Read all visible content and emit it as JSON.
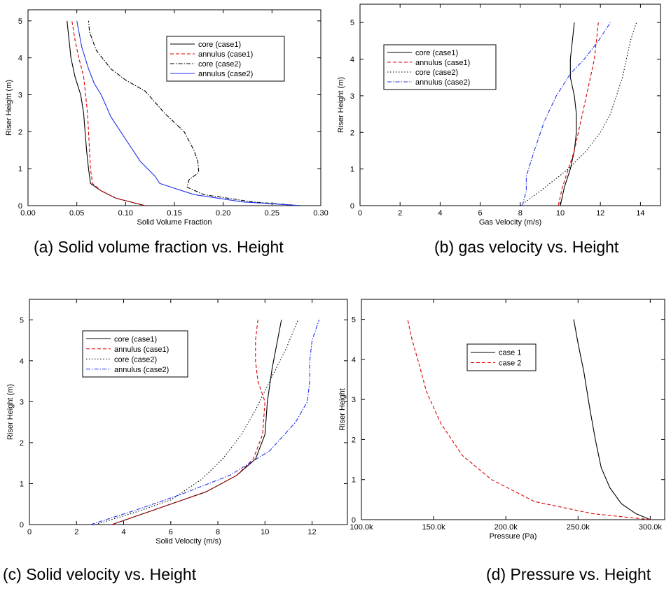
{
  "captions": {
    "a": "(a) Solid volume fraction vs. Height",
    "b": "(b) gas velocity vs. Height",
    "c": "(c) Solid velocity vs. Height",
    "d": "(d) Pressure vs. Height"
  },
  "chart_data": [
    {
      "id": "a",
      "type": "line",
      "xlabel": "Solid Volume Fraction",
      "ylabel": "Riser Height (m)",
      "xlim": [
        0,
        0.3
      ],
      "ylim": [
        0,
        5.3
      ],
      "xticks": [
        0,
        0.05,
        0.1,
        0.15,
        0.2,
        0.25,
        0.3
      ],
      "xtick_labels": [
        "0.00",
        "0.05",
        "0.10",
        "0.15",
        "0.20",
        "0.25",
        "0.30"
      ],
      "yticks": [
        0,
        1,
        2,
        3,
        4,
        5
      ],
      "ytick_labels": [
        "0",
        "1",
        "2",
        "3",
        "4",
        "5"
      ],
      "legend_position": "top-right",
      "series": [
        {
          "name": "core (case1)",
          "color": "#000000",
          "dash": "solid",
          "points": [
            [
              0.12,
              0
            ],
            [
              0.09,
              0.2
            ],
            [
              0.075,
              0.4
            ],
            [
              0.064,
              0.6
            ],
            [
              0.062,
              1.0
            ],
            [
              0.06,
              1.5
            ],
            [
              0.057,
              2.5
            ],
            [
              0.054,
              3.0
            ],
            [
              0.048,
              3.5
            ],
            [
              0.044,
              4.0
            ],
            [
              0.042,
              4.5
            ],
            [
              0.04,
              5.0
            ]
          ]
        },
        {
          "name": "annulus (case1)",
          "color": "#dd0000",
          "dash": "dashed",
          "points": [
            [
              0.12,
              0
            ],
            [
              0.09,
              0.2
            ],
            [
              0.075,
              0.4
            ],
            [
              0.066,
              0.6
            ],
            [
              0.064,
              1.0
            ],
            [
              0.063,
              1.5
            ],
            [
              0.061,
              2.5
            ],
            [
              0.059,
              3.0
            ],
            [
              0.057,
              3.5
            ],
            [
              0.052,
              4.0
            ],
            [
              0.048,
              4.5
            ],
            [
              0.045,
              5.0
            ]
          ]
        },
        {
          "name": "core (case2)",
          "color": "#000000",
          "dash": "dashdot",
          "points": [
            [
              0.28,
              0
            ],
            [
              0.23,
              0.1
            ],
            [
              0.18,
              0.3
            ],
            [
              0.163,
              0.5
            ],
            [
              0.165,
              0.7
            ],
            [
              0.175,
              0.9
            ],
            [
              0.174,
              1.2
            ],
            [
              0.17,
              1.5
            ],
            [
              0.16,
              2.0
            ],
            [
              0.14,
              2.5
            ],
            [
              0.12,
              3.1
            ],
            [
              0.1,
              3.4
            ],
            [
              0.085,
              3.7
            ],
            [
              0.07,
              4.2
            ],
            [
              0.063,
              4.7
            ],
            [
              0.062,
              5.0
            ]
          ]
        },
        {
          "name": "annulus (case2)",
          "color": "#2233ee",
          "dash": "solid",
          "points": [
            [
              0.28,
              0
            ],
            [
              0.22,
              0.1
            ],
            [
              0.17,
              0.3
            ],
            [
              0.135,
              0.6
            ],
            [
              0.13,
              0.8
            ],
            [
              0.115,
              1.2
            ],
            [
              0.1,
              1.8
            ],
            [
              0.085,
              2.4
            ],
            [
              0.075,
              3.0
            ],
            [
              0.068,
              3.3
            ],
            [
              0.062,
              3.7
            ],
            [
              0.055,
              4.3
            ],
            [
              0.05,
              5.0
            ]
          ]
        }
      ]
    },
    {
      "id": "b",
      "type": "line",
      "xlabel": "Gas Velocity (m/s)",
      "ylabel": "Riser Height (m)",
      "xlim": [
        0,
        15
      ],
      "ylim": [
        0,
        5.5
      ],
      "xticks": [
        0,
        2,
        4,
        6,
        8,
        10,
        12,
        14
      ],
      "xtick_labels": [
        "0",
        "2",
        "4",
        "6",
        "8",
        "10",
        "12",
        "14"
      ],
      "yticks": [
        0,
        1,
        2,
        3,
        4,
        5
      ],
      "ytick_labels": [
        "0",
        "1",
        "2",
        "3",
        "4",
        "5"
      ],
      "legend_position": "top-left",
      "series": [
        {
          "name": "core (case1)",
          "color": "#000000",
          "dash": "solid",
          "points": [
            [
              10.0,
              0
            ],
            [
              10.2,
              0.5
            ],
            [
              10.5,
              1.0
            ],
            [
              10.7,
              1.5
            ],
            [
              10.8,
              2.0
            ],
            [
              10.8,
              2.5
            ],
            [
              10.7,
              3.0
            ],
            [
              10.5,
              3.5
            ],
            [
              10.5,
              4.0
            ],
            [
              10.6,
              4.5
            ],
            [
              10.7,
              5.0
            ]
          ]
        },
        {
          "name": "annulus (case1)",
          "color": "#dd0000",
          "dash": "dashed",
          "points": [
            [
              9.9,
              0
            ],
            [
              10.1,
              0.5
            ],
            [
              10.4,
              1.0
            ],
            [
              10.7,
              1.5
            ],
            [
              10.9,
              2.0
            ],
            [
              11.1,
              2.5
            ],
            [
              11.3,
              3.0
            ],
            [
              11.5,
              3.5
            ],
            [
              11.7,
              4.0
            ],
            [
              11.8,
              4.5
            ],
            [
              11.9,
              5.0
            ]
          ]
        },
        {
          "name": "core (case2)",
          "color": "#000000",
          "dash": "dotted",
          "points": [
            [
              8.0,
              0
            ],
            [
              9.0,
              0.4
            ],
            [
              10.4,
              1.0
            ],
            [
              11.3,
              1.5
            ],
            [
              12.0,
              2.0
            ],
            [
              12.5,
              2.5
            ],
            [
              12.8,
              3.0
            ],
            [
              13.1,
              3.5
            ],
            [
              13.3,
              4.0
            ],
            [
              13.5,
              4.5
            ],
            [
              13.8,
              5.0
            ]
          ]
        },
        {
          "name": "annulus (case2)",
          "color": "#2233ee",
          "dash": "dashdot",
          "points": [
            [
              8.1,
              0
            ],
            [
              8.3,
              0.4
            ],
            [
              8.3,
              0.8
            ],
            [
              8.7,
              1.5
            ],
            [
              9.2,
              2.3
            ],
            [
              9.8,
              3.0
            ],
            [
              10.5,
              3.6
            ],
            [
              11.2,
              4.0
            ],
            [
              11.9,
              4.5
            ],
            [
              12.5,
              5.0
            ]
          ]
        }
      ]
    },
    {
      "id": "c",
      "type": "line",
      "xlabel": "Solid Velocity (m/s)",
      "ylabel": "Riser Height (m)",
      "xlim": [
        0,
        13.5
      ],
      "ylim": [
        0,
        5.5
      ],
      "xticks": [
        0,
        2,
        4,
        6,
        8,
        10,
        12
      ],
      "xtick_labels": [
        "0",
        "2",
        "4",
        "6",
        "8",
        "10",
        "12"
      ],
      "yticks": [
        0,
        1,
        2,
        3,
        4,
        5
      ],
      "ytick_labels": [
        "0",
        "1",
        "2",
        "3",
        "4",
        "5"
      ],
      "legend_position": "top-left",
      "series": [
        {
          "name": "core (case1)",
          "color": "#000000",
          "dash": "solid",
          "points": [
            [
              3.5,
              0
            ],
            [
              5.5,
              0.4
            ],
            [
              7.5,
              0.8
            ],
            [
              8.8,
              1.2
            ],
            [
              9.6,
              1.6
            ],
            [
              10.0,
              2.2
            ],
            [
              10.1,
              3.0
            ],
            [
              10.3,
              3.8
            ],
            [
              10.5,
              4.4
            ],
            [
              10.7,
              5.0
            ]
          ]
        },
        {
          "name": "annulus (case1)",
          "color": "#dd0000",
          "dash": "dashed",
          "points": [
            [
              3.5,
              0
            ],
            [
              5.5,
              0.4
            ],
            [
              7.5,
              0.8
            ],
            [
              8.8,
              1.2
            ],
            [
              9.5,
              1.6
            ],
            [
              9.9,
              2.2
            ],
            [
              10.0,
              3.0
            ],
            [
              9.7,
              3.5
            ],
            [
              9.6,
              4.0
            ],
            [
              9.6,
              4.5
            ],
            [
              9.7,
              5.0
            ]
          ]
        },
        {
          "name": "core (case2)",
          "color": "#000000",
          "dash": "dotted",
          "points": [
            [
              2.8,
              0
            ],
            [
              4.5,
              0.3
            ],
            [
              6.0,
              0.6
            ],
            [
              7.3,
              1.1
            ],
            [
              8.2,
              1.6
            ],
            [
              9.0,
              2.2
            ],
            [
              9.6,
              2.8
            ],
            [
              10.2,
              3.5
            ],
            [
              10.9,
              4.3
            ],
            [
              11.4,
              5.0
            ]
          ]
        },
        {
          "name": "annulus (case2)",
          "color": "#2233ee",
          "dash": "dashdot",
          "points": [
            [
              2.6,
              0
            ],
            [
              4.5,
              0.35
            ],
            [
              6.5,
              0.75
            ],
            [
              8.5,
              1.2
            ],
            [
              10.2,
              1.8
            ],
            [
              11.3,
              2.5
            ],
            [
              11.8,
              3.0
            ],
            [
              11.9,
              3.5
            ],
            [
              11.9,
              4.0
            ],
            [
              12.0,
              4.5
            ],
            [
              12.3,
              5.0
            ]
          ]
        }
      ]
    },
    {
      "id": "d",
      "type": "line",
      "xlabel": "Pressure (Pa)",
      "ylabel": "Riser Height",
      "xlim": [
        100000,
        310000
      ],
      "ylim": [
        0,
        5.5
      ],
      "xticks": [
        100000,
        150000,
        200000,
        250000,
        300000
      ],
      "xtick_labels": [
        "100.0k",
        "150.0k",
        "200.0k",
        "250.0k",
        "300.0k"
      ],
      "yticks": [
        0,
        1,
        2,
        3,
        4,
        5
      ],
      "ytick_labels": [
        "0",
        "1",
        "2",
        "3",
        "4",
        "5"
      ],
      "legend_position": "top-center",
      "series": [
        {
          "name": "case 1",
          "color": "#000000",
          "dash": "solid",
          "points": [
            [
              300000,
              0
            ],
            [
              290000,
              0.15
            ],
            [
              280000,
              0.4
            ],
            [
              272000,
              0.8
            ],
            [
              266000,
              1.3
            ],
            [
              262000,
              2.0
            ],
            [
              258000,
              2.8
            ],
            [
              254000,
              3.7
            ],
            [
              250000,
              4.4
            ],
            [
              247000,
              5.0
            ]
          ]
        },
        {
          "name": "case 2",
          "color": "#dd0000",
          "dash": "dashed",
          "points": [
            [
              300000,
              0
            ],
            [
              260000,
              0.15
            ],
            [
              220000,
              0.45
            ],
            [
              190000,
              1.0
            ],
            [
              170000,
              1.6
            ],
            [
              155000,
              2.4
            ],
            [
              145000,
              3.2
            ],
            [
              139000,
              4.0
            ],
            [
              135000,
              4.5
            ],
            [
              132000,
              5.0
            ]
          ]
        }
      ]
    }
  ]
}
